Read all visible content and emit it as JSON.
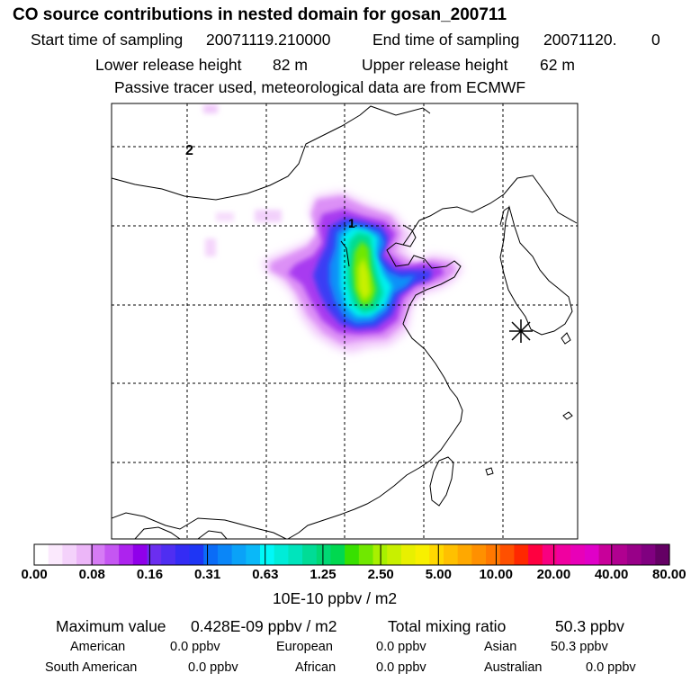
{
  "header": {
    "title": "CO  source contributions in nested domain for gosan_200711",
    "start_label": "Start time of sampling",
    "start_value": "20071119.210000",
    "end_label": "End time of sampling",
    "end_value": "20071120.",
    "end_suffix": "0",
    "lower_label": "Lower release height",
    "lower_value": "82 m",
    "upper_label": "Upper release height",
    "upper_value": "62 m",
    "note": "Passive tracer used, meteorological data are from ECMWF"
  },
  "map": {
    "labels": [
      "2",
      "1"
    ],
    "receptor_marker": "star-icon"
  },
  "colorbar": {
    "colors": [
      "#ffffff",
      "#fbe9fd",
      "#f4d2fb",
      "#ecb6f8",
      "#d67bf5",
      "#c556f2",
      "#ad23ee",
      "#9000ea",
      "#6b2ef0",
      "#4f2ef2",
      "#342cf4",
      "#1e36f5",
      "#0a6cf7",
      "#0a86f8",
      "#0aa2f8",
      "#0ab8f8",
      "#00f8f8",
      "#00ecd8",
      "#00e4bc",
      "#00dc96",
      "#00d874",
      "#00d850",
      "#38e000",
      "#70e800",
      "#a8f000",
      "#c8f000",
      "#e8f000",
      "#f8f000",
      "#ffd800",
      "#ffc000",
      "#ffa800",
      "#ff9000",
      "#ff7800",
      "#ff5000",
      "#ff2800",
      "#ff0040",
      "#f80080",
      "#f000a0",
      "#e800b8",
      "#e000c8",
      "#c8009a",
      "#b00090",
      "#980088",
      "#800080",
      "#640064"
    ],
    "ticks": [
      "0.00",
      "0.08",
      "0.16",
      "0.31",
      "0.63",
      "1.25",
      "2.50",
      "5.00",
      "10.00",
      "20.00",
      "40.00",
      "80.00"
    ],
    "unit": "10E-10 ppbv / m2"
  },
  "stats": {
    "max_label": "Maximum value",
    "max_value": "0.428E-09 ppbv / m2",
    "total_label": "Total mixing ratio",
    "total_value": "50.3 ppbv",
    "regions": [
      {
        "name": "American",
        "value": "0.0 ppbv"
      },
      {
        "name": "European",
        "value": "0.0 ppbv"
      },
      {
        "name": "Asian",
        "value": "50.3 ppbv"
      },
      {
        "name": "South American",
        "value": "0.0 ppbv"
      },
      {
        "name": "African",
        "value": "0.0 ppbv"
      },
      {
        "name": "Australian",
        "value": "0.0 ppbv"
      }
    ]
  }
}
